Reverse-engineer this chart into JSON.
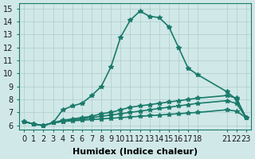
{
  "background_color": "#d0e8e8",
  "grid_color": "#b0cccc",
  "line_color": "#1a7a6a",
  "line_width": 1.2,
  "marker": "*",
  "marker_size": 4,
  "xlabel": "Humidex (Indice chaleur)",
  "xlabel_fontsize": 8,
  "ylabel_fontsize": 7,
  "tick_fontsize": 7,
  "xlim": [
    -0.5,
    23.5
  ],
  "ylim": [
    5.7,
    15.4
  ],
  "yticks": [
    6,
    7,
    8,
    9,
    10,
    11,
    12,
    13,
    14,
    15
  ],
  "xticks": [
    0,
    1,
    2,
    3,
    4,
    5,
    6,
    7,
    8,
    9,
    10,
    11,
    12,
    13,
    14,
    15,
    16,
    17,
    18,
    21,
    22,
    23
  ],
  "series": [
    {
      "x": [
        0,
        1,
        2,
        3,
        4,
        5,
        6,
        7,
        8,
        9,
        10,
        11,
        12,
        13,
        14,
        15,
        16,
        17,
        18,
        21,
        22,
        23
      ],
      "y": [
        6.3,
        6.1,
        6.0,
        6.2,
        7.2,
        7.5,
        7.7,
        8.3,
        9.0,
        10.5,
        12.8,
        14.1,
        14.8,
        14.4,
        14.3,
        13.6,
        12.0,
        10.4,
        9.9,
        8.6,
        8.0,
        6.6
      ]
    },
    {
      "x": [
        0,
        1,
        2,
        3,
        4,
        5,
        6,
        7,
        8,
        9,
        10,
        11,
        12,
        13,
        14,
        15,
        16,
        17,
        18,
        21,
        22,
        23
      ],
      "y": [
        6.3,
        6.1,
        6.0,
        6.2,
        6.4,
        6.5,
        6.6,
        6.7,
        6.9,
        7.0,
        7.2,
        7.4,
        7.5,
        7.6,
        7.7,
        7.8,
        7.9,
        8.0,
        8.1,
        8.3,
        8.1,
        6.6
      ]
    },
    {
      "x": [
        0,
        1,
        2,
        3,
        4,
        5,
        6,
        7,
        8,
        9,
        10,
        11,
        12,
        13,
        14,
        15,
        16,
        17,
        18,
        21,
        22,
        23
      ],
      "y": [
        6.3,
        6.1,
        6.0,
        6.2,
        6.3,
        6.4,
        6.5,
        6.6,
        6.7,
        6.8,
        6.9,
        7.0,
        7.1,
        7.2,
        7.3,
        7.4,
        7.5,
        7.6,
        7.7,
        7.9,
        7.7,
        6.6
      ]
    },
    {
      "x": [
        0,
        1,
        2,
        3,
        4,
        5,
        6,
        7,
        8,
        9,
        10,
        11,
        12,
        13,
        14,
        15,
        16,
        17,
        18,
        21,
        22,
        23
      ],
      "y": [
        6.3,
        6.1,
        6.0,
        6.2,
        6.3,
        6.35,
        6.4,
        6.45,
        6.5,
        6.55,
        6.6,
        6.65,
        6.7,
        6.75,
        6.8,
        6.85,
        6.9,
        6.95,
        7.0,
        7.2,
        7.1,
        6.6
      ]
    }
  ]
}
